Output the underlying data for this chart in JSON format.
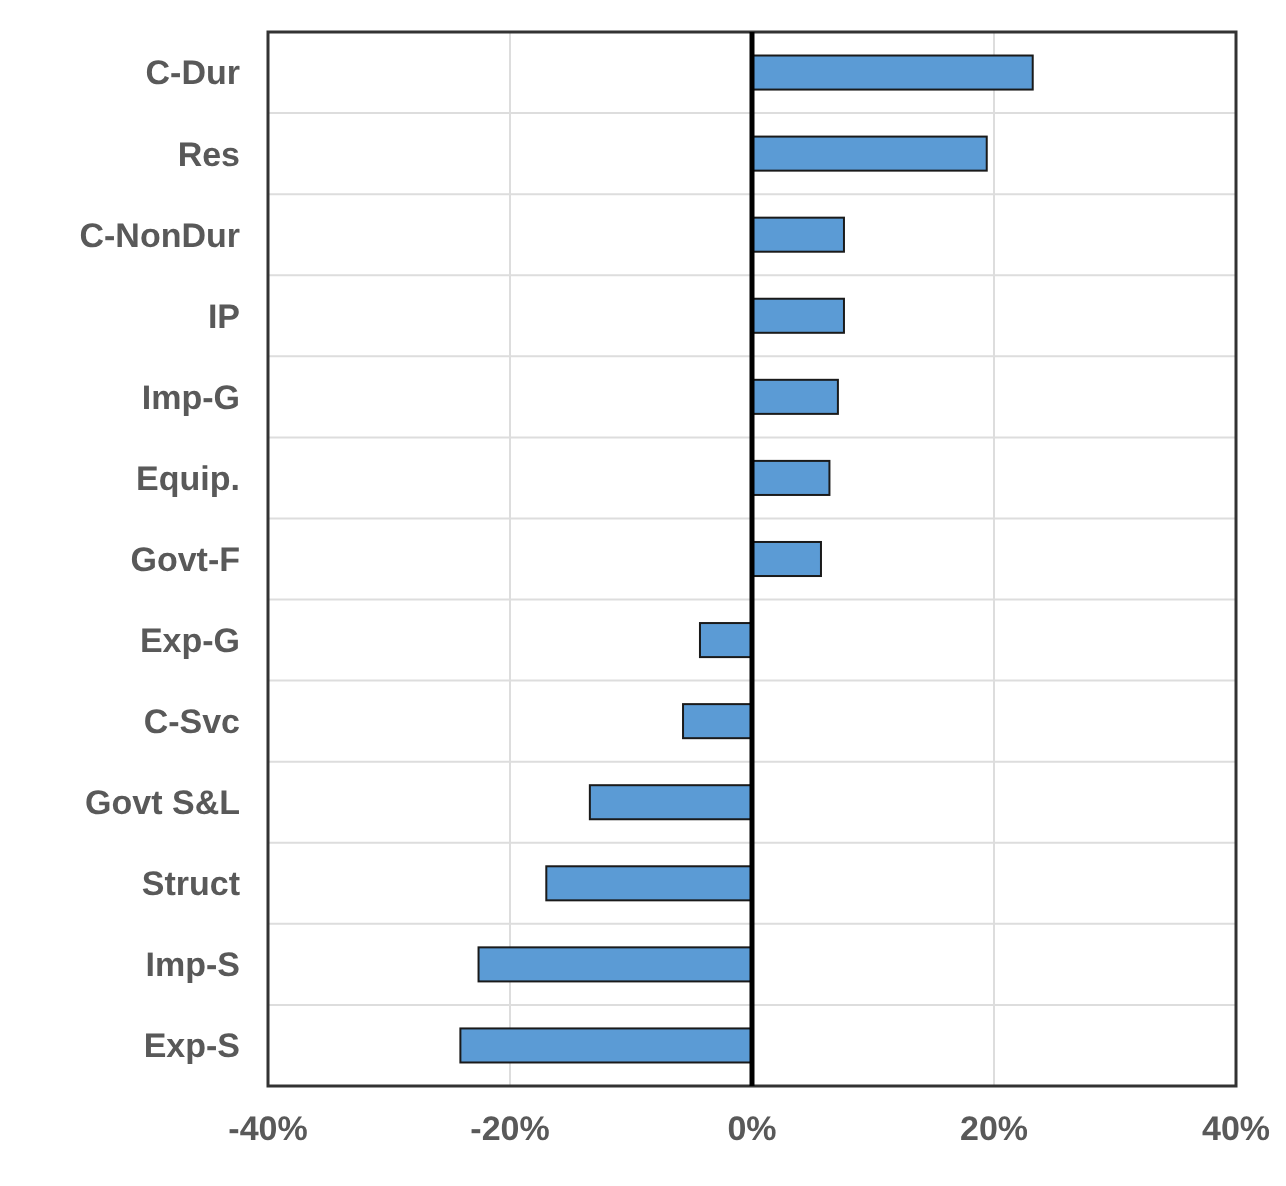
{
  "chart_data": {
    "type": "bar",
    "orientation": "horizontal",
    "categories": [
      "C-Dur",
      "Res",
      "C-NonDur",
      "IP",
      "Imp-G",
      "Equip.",
      "Govt-F",
      "Exp-G",
      "C-Svc",
      "Govt S&L",
      "Struct",
      "Imp-S",
      "Exp-S"
    ],
    "values": [
      23.2,
      19.4,
      7.6,
      7.6,
      7.1,
      6.4,
      5.7,
      -4.3,
      -5.7,
      -13.4,
      -17.0,
      -22.6,
      -24.1
    ],
    "color": "#5b9bd5",
    "xlim": [
      -40,
      40
    ],
    "xticks": [
      {
        "value": -40,
        "label": "-40%"
      },
      {
        "value": -20,
        "label": "-20%"
      },
      {
        "value": 0,
        "label": "0%"
      },
      {
        "value": 20,
        "label": "20%"
      },
      {
        "value": 40,
        "label": "40%"
      }
    ],
    "grid": true
  }
}
